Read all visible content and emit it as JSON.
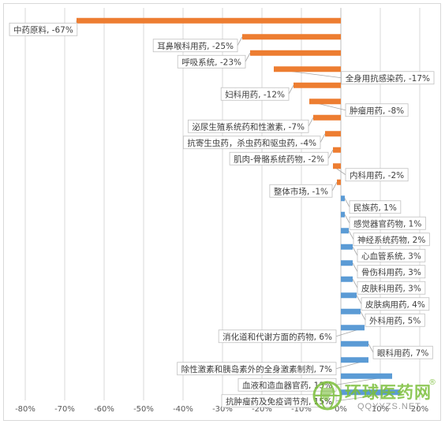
{
  "chart_data": {
    "type": "bar",
    "orientation": "horizontal",
    "unit": "%",
    "xlim": [
      -80,
      30
    ],
    "xticks": [
      -80,
      -70,
      -60,
      -50,
      -40,
      -30,
      -20,
      -10,
      0,
      10,
      20,
      30
    ],
    "xtick_labels": [
      "-80%",
      "-70%",
      "-60%",
      "-50%",
      "-40%",
      "-30%",
      "-20%",
      "-10%",
      "0%",
      "10%",
      "20%",
      "30%"
    ],
    "grid": true,
    "categories": [
      "中药原料",
      "耳鼻喉科用药",
      "呼吸系统",
      "全身用抗感染药",
      "妇科用药",
      "肿瘤用药",
      "泌尿生殖系统药和性激素",
      "抗寄生虫药，杀虫药和驱虫药",
      "肌肉-骨骼系统药物",
      "内科用药",
      "整体市场",
      "民族药",
      "感觉器官药物",
      "神经系统药物",
      "心血管系统",
      "骨伤科用药",
      "皮肤科用药",
      "皮肤病用药",
      "外科用药",
      "消化道和代谢方面的药物",
      "眼科用药",
      "除性激素和胰岛素外的全身激素制剂",
      "血液和造血器官药",
      "抗肿瘤药及免疫调节剂"
    ],
    "values": [
      -67,
      -25,
      -23,
      -17,
      -12,
      -8,
      -7,
      -4,
      -2,
      -2,
      -1,
      1,
      1,
      2,
      3,
      3,
      3,
      4,
      5,
      6,
      7,
      7,
      13,
      15
    ],
    "data_labels": [
      "中药原料, -67%",
      "耳鼻喉科用药, -25%",
      "呼吸系统, -23%",
      "全身用抗感染药, -17%",
      "妇科用药, -12%",
      "肿瘤用药, -8%",
      "泌尿生殖系统药和性激素, -7%",
      "抗寄生虫药，杀虫药和驱虫药, -4%",
      "肌肉-骨骼系统药物, -2%",
      "内科用药, -2%",
      "整体市场, -1%",
      "民族药, 1%",
      "感觉器官药物, 1%",
      "神经系统药物, 2%",
      "心血管系统, 3%",
      "骨伤科用药, 3%",
      "皮肤科用药, 3%",
      "皮肤病用药, 4%",
      "外科用药, 5%",
      "消化道和代谢方面的药物, 6%",
      "眼科用药, 7%",
      "除性激素和胰岛素外的全身激素制剂, 7%",
      "血液和造血器官药, 13%",
      "抗肿瘤药及免疫调节剂, 15%"
    ],
    "label_side": [
      "left",
      "left",
      "left",
      "right",
      "left",
      "right",
      "left",
      "left",
      "left",
      "right",
      "left",
      "right",
      "right",
      "right",
      "right",
      "right",
      "right",
      "right",
      "right",
      "left",
      "right",
      "left",
      "left",
      "left"
    ],
    "colors": {
      "negative": "#ed7d31",
      "positive": "#5b9bd5",
      "grid": "#d9d9d9",
      "label_border": "#bfbfbf",
      "text": "#404040"
    }
  },
  "watermark": {
    "brand": "环球医药网",
    "reg": "®",
    "url": "QQYYZS.NET"
  }
}
